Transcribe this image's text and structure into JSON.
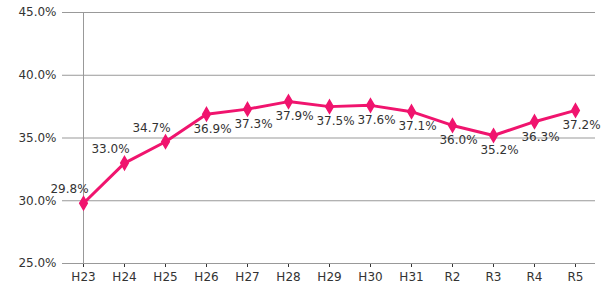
{
  "chart_data": {
    "type": "line",
    "categories": [
      "H23",
      "H24",
      "H25",
      "H26",
      "H27",
      "H28",
      "H29",
      "H30",
      "H31",
      "R2",
      "R3",
      "R4",
      "R5"
    ],
    "values": [
      29.8,
      33.0,
      34.7,
      36.9,
      37.3,
      37.9,
      37.5,
      37.6,
      37.1,
      36.0,
      35.2,
      36.3,
      37.2
    ],
    "value_labels": [
      "29.8%",
      "33.0%",
      "34.7%",
      "36.9%",
      "37.3%",
      "37.9%",
      "37.5%",
      "37.6%",
      "37.1%",
      "36.0%",
      "35.2%",
      "36.3%",
      "37.2%"
    ],
    "data_labels": true,
    "color": "#f0146e",
    "marker": "diamond",
    "ylim": [
      25,
      45
    ],
    "yticks": [
      {
        "value": 25,
        "label": "25.0%"
      },
      {
        "value": 30,
        "label": "30.0%"
      },
      {
        "value": 35,
        "label": "35.0%"
      },
      {
        "value": 40,
        "label": "40.0%"
      },
      {
        "value": 45,
        "label": "45.0%"
      }
    ],
    "grid": true
  }
}
